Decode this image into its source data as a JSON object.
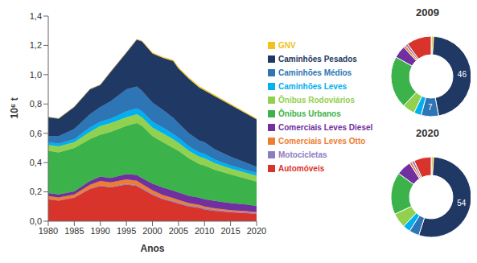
{
  "chart_data": [
    {
      "type": "area",
      "stacked": true,
      "grid": false,
      "legend": "right",
      "x_label": "Anos",
      "y_label": "10⁶ t",
      "x": [
        1980,
        1982,
        1985,
        1988,
        1990,
        1992,
        1995,
        1997,
        1998,
        2000,
        2002,
        2004,
        2005,
        2007,
        2009,
        2010,
        2012,
        2015,
        2018,
        2020
      ],
      "xlim": [
        1980,
        2020
      ],
      "xticks": [
        1980,
        1985,
        1990,
        1995,
        2000,
        2005,
        2010,
        2015,
        2020
      ],
      "ylim": [
        0,
        1.4
      ],
      "yticks": [
        {
          "value": 0,
          "label": "0,0"
        },
        {
          "value": 0.2,
          "label": "0,2"
        },
        {
          "value": 0.4,
          "label": "0,4"
        },
        {
          "value": 0.6,
          "label": "0,6"
        },
        {
          "value": 0.8,
          "label": "0,8"
        },
        {
          "value": 1,
          "label": "1,0"
        },
        {
          "value": 1.2,
          "label": "1,2"
        },
        {
          "value": 1.4,
          "label": "1,4"
        }
      ],
      "series": [
        {
          "name": "GNV",
          "color": "#f2c21b",
          "values": [
            0,
            0,
            0,
            0,
            0,
            0,
            0,
            0,
            0.003,
            0.005,
            0.006,
            0.008,
            0.008,
            0.008,
            0.008,
            0.008,
            0.007,
            0.007,
            0.006,
            0.006
          ]
        },
        {
          "name": "Caminhões Pesados",
          "color": "#1f3864",
          "values": [
            0.13,
            0.12,
            0.15,
            0.17,
            0.15,
            0.2,
            0.25,
            0.32,
            0.337,
            0.335,
            0.354,
            0.387,
            0.372,
            0.372,
            0.362,
            0.352,
            0.363,
            0.353,
            0.334,
            0.324
          ]
        },
        {
          "name": "Caminhões Médios",
          "color": "#2e75b6",
          "values": [
            0.04,
            0.05,
            0.07,
            0.09,
            0.1,
            0.12,
            0.15,
            0.15,
            0.14,
            0.13,
            0.12,
            0.11,
            0.1,
            0.09,
            0.08,
            0.08,
            0.07,
            0.06,
            0.05,
            0.04
          ]
        },
        {
          "name": "Caminhões Leves",
          "color": "#00b0f0",
          "values": [
            0.02,
            0.02,
            0.02,
            0.03,
            0.03,
            0.03,
            0.04,
            0.04,
            0.04,
            0.04,
            0.04,
            0.035,
            0.035,
            0.03,
            0.03,
            0.03,
            0.025,
            0.02,
            0.02,
            0.02
          ]
        },
        {
          "name": "Ônibus Rodoviários",
          "color": "#92d050",
          "values": [
            0.04,
            0.04,
            0.04,
            0.05,
            0.06,
            0.06,
            0.06,
            0.06,
            0.06,
            0.06,
            0.06,
            0.06,
            0.055,
            0.05,
            0.05,
            0.05,
            0.045,
            0.04,
            0.04,
            0.04
          ]
        },
        {
          "name": "Ônibus Urbanos",
          "color": "#3cb34a",
          "values": [
            0.288,
            0.288,
            0.297,
            0.286,
            0.285,
            0.315,
            0.329,
            0.354,
            0.356,
            0.323,
            0.311,
            0.292,
            0.284,
            0.257,
            0.229,
            0.23,
            0.212,
            0.197,
            0.176,
            0.166
          ]
        },
        {
          "name": "Comerciais Leves Diesel",
          "color": "#7030a0",
          "values": [
            0.02,
            0.02,
            0.02,
            0.025,
            0.03,
            0.03,
            0.035,
            0.04,
            0.04,
            0.045,
            0.05,
            0.05,
            0.05,
            0.05,
            0.05,
            0.05,
            0.05,
            0.048,
            0.045,
            0.042
          ]
        },
        {
          "name": "Comerciais Leves Otto",
          "color": "#ed7d31",
          "values": [
            0.02,
            0.02,
            0.02,
            0.025,
            0.03,
            0.03,
            0.03,
            0.03,
            0.028,
            0.025,
            0.022,
            0.02,
            0.018,
            0.015,
            0.013,
            0.012,
            0.01,
            0.008,
            0.007,
            0.006
          ]
        },
        {
          "name": "Motocicletas",
          "color": "#8e7cc3",
          "values": [
            0.002,
            0.002,
            0.003,
            0.004,
            0.005,
            0.005,
            0.006,
            0.006,
            0.006,
            0.007,
            0.007,
            0.008,
            0.008,
            0.008,
            0.008,
            0.008,
            0.008,
            0.007,
            0.007,
            0.006
          ]
        },
        {
          "name": "Automóveis",
          "color": "#d9342b",
          "values": [
            0.15,
            0.14,
            0.16,
            0.22,
            0.24,
            0.23,
            0.25,
            0.24,
            0.22,
            0.18,
            0.15,
            0.13,
            0.12,
            0.1,
            0.09,
            0.08,
            0.07,
            0.06,
            0.055,
            0.05
          ]
        }
      ]
    },
    {
      "type": "pie",
      "title": "2009",
      "categories": [
        "GNV",
        "Caminhões Pesados",
        "Caminhões Médios",
        "Caminhões Leves",
        "Ônibus Rodoviários",
        "Ônibus Urbanos",
        "Comerciais Leves Diesel",
        "Comerciais Leves Otto",
        "Motocicletas",
        "Automóveis"
      ],
      "values": [
        1,
        46,
        7,
        3,
        5,
        21,
        5,
        1,
        1,
        10
      ],
      "value_labels": [
        null,
        "46",
        "7",
        null,
        null,
        null,
        null,
        null,
        null,
        null
      ],
      "colors": [
        "#f2c21b",
        "#1f3864",
        "#2e75b6",
        "#00b0f0",
        "#92d050",
        "#3cb34a",
        "#7030a0",
        "#ed7d31",
        "#8e7cc3",
        "#d9342b"
      ]
    },
    {
      "type": "pie",
      "title": "2020",
      "categories": [
        "GNV",
        "Caminhões Pesados",
        "Caminhões Médios",
        "Caminhões Leves",
        "Ônibus Rodoviários",
        "Ônibus Urbanos",
        "Comerciais Leves Diesel",
        "Comerciais Leves Otto",
        "Motocicletas",
        "Automóveis"
      ],
      "values": [
        1,
        54,
        4,
        3,
        6,
        17,
        6,
        1,
        1,
        7
      ],
      "value_labels": [
        null,
        "54",
        null,
        null,
        null,
        null,
        null,
        null,
        null,
        null
      ],
      "colors": [
        "#f2c21b",
        "#1f3864",
        "#2e75b6",
        "#00b0f0",
        "#92d050",
        "#3cb34a",
        "#7030a0",
        "#ed7d31",
        "#8e7cc3",
        "#d9342b"
      ]
    }
  ]
}
